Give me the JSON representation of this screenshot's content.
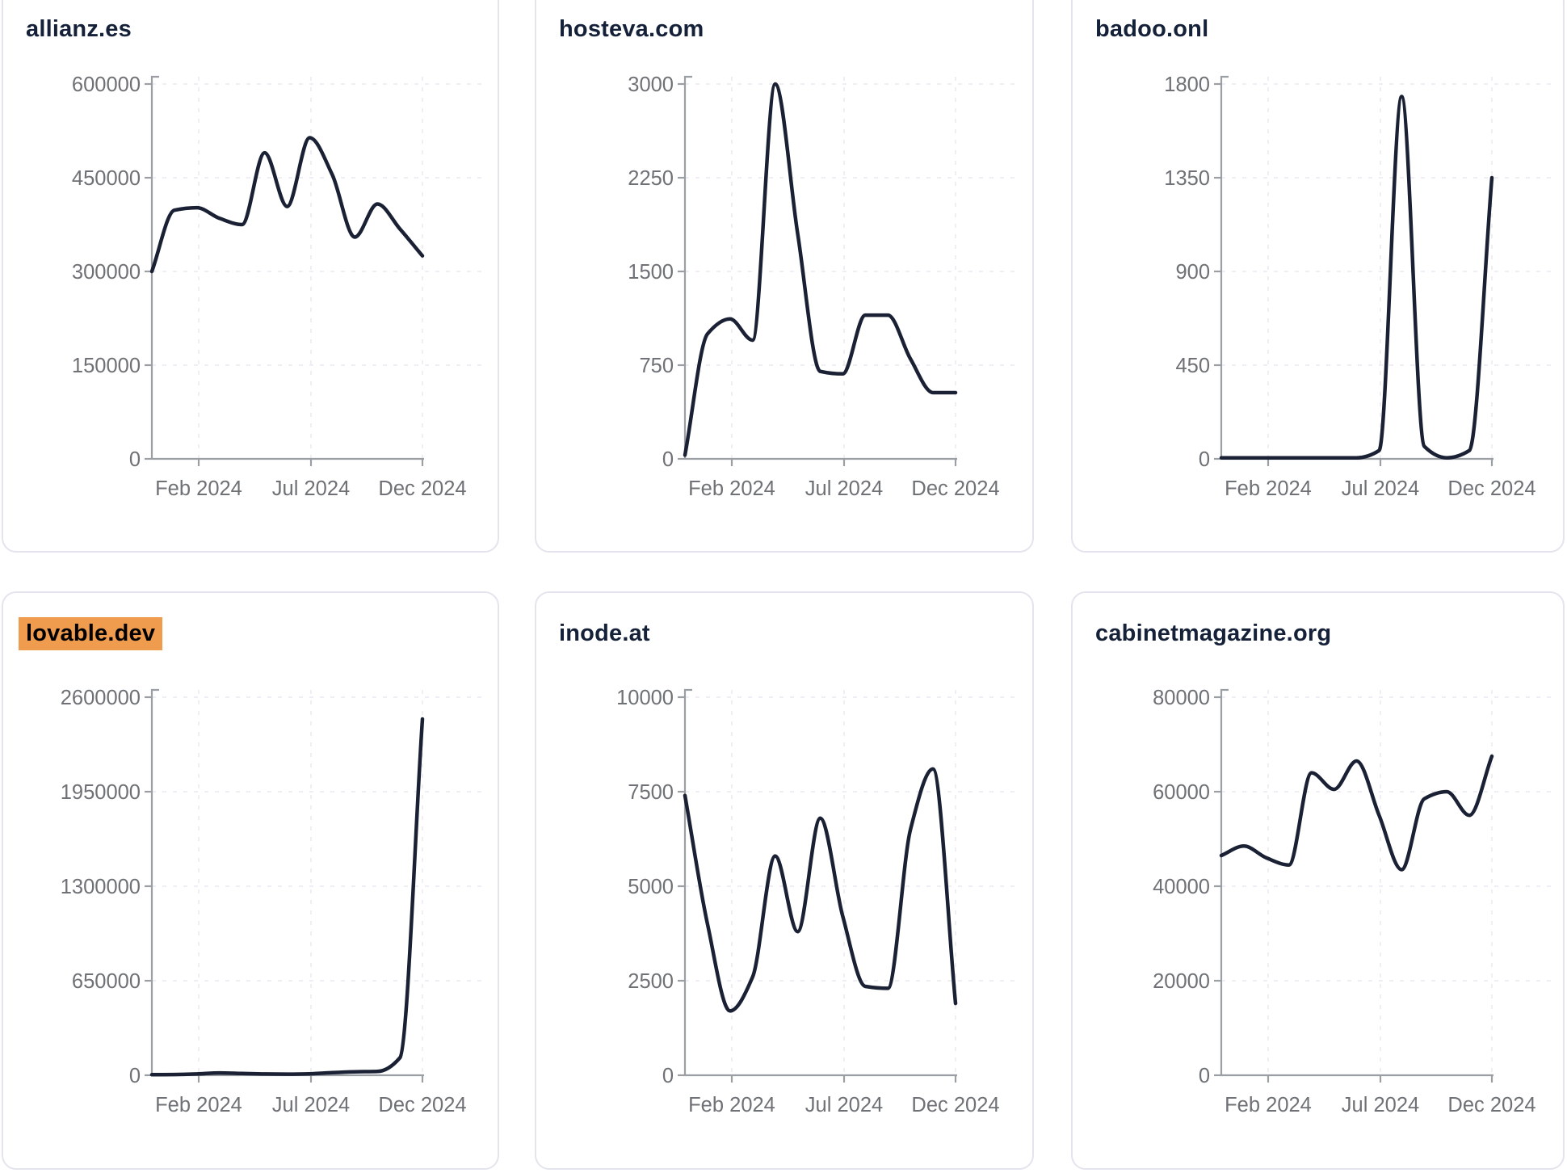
{
  "page": {
    "background": "#ffffff"
  },
  "style": {
    "line_color": "#1b2134",
    "title_color": "#152138",
    "axis_label_color": "#6e7175",
    "axis_line_color": "#9b9fa4",
    "grid_color": "#ececf2",
    "card_border_color": "#e4e4ee",
    "card_background": "#ffffff",
    "highlight_background": "#f09c4e",
    "highlight_text_color": "#000000"
  },
  "chart_data": [
    {
      "type": "line",
      "title": "allianz.es",
      "title_highlighted": false,
      "grid": true,
      "legend": "none",
      "x_tick_labels": [
        "Feb 2024",
        "Jul 2024",
        "Dec 2024"
      ],
      "x_tick_indices": [
        2,
        7,
        12
      ],
      "y_ticks": [
        0,
        150000,
        300000,
        450000,
        600000
      ],
      "ylim": [
        0,
        600000
      ],
      "values": [
        300000,
        398000,
        402000,
        385000,
        375000,
        490000,
        404000,
        514000,
        455000,
        355000,
        408000,
        368000,
        325000
      ]
    },
    {
      "type": "line",
      "title": "hosteva.com",
      "title_highlighted": false,
      "grid": true,
      "legend": "none",
      "x_tick_labels": [
        "Feb 2024",
        "Jul 2024",
        "Dec 2024"
      ],
      "x_tick_indices": [
        2,
        7,
        12
      ],
      "y_ticks": [
        0,
        750,
        1500,
        2250,
        3000
      ],
      "ylim": [
        0,
        3000
      ],
      "values": [
        30,
        1000,
        1120,
        950,
        3000,
        1800,
        700,
        680,
        1150,
        1150,
        800,
        530,
        530
      ]
    },
    {
      "type": "line",
      "title": "badoo.onl",
      "title_highlighted": false,
      "grid": true,
      "legend": "none",
      "x_tick_labels": [
        "Feb 2024",
        "Jul 2024",
        "Dec 2024"
      ],
      "x_tick_indices": [
        2,
        7,
        12
      ],
      "y_ticks": [
        0,
        450,
        900,
        1350,
        1800
      ],
      "ylim": [
        0,
        1800
      ],
      "values": [
        5,
        5,
        5,
        5,
        5,
        5,
        5,
        40,
        1740,
        60,
        5,
        40,
        1350
      ]
    },
    {
      "type": "line",
      "title": "lovable.dev",
      "title_highlighted": true,
      "grid": true,
      "legend": "none",
      "x_tick_labels": [
        "Feb 2024",
        "Jul 2024",
        "Dec 2024"
      ],
      "x_tick_indices": [
        2,
        7,
        12
      ],
      "y_ticks": [
        0,
        650000,
        1300000,
        1950000,
        2600000
      ],
      "ylim": [
        0,
        2600000
      ],
      "values": [
        4000,
        5000,
        9000,
        16000,
        12000,
        9000,
        8000,
        10000,
        18000,
        24000,
        26000,
        120000,
        2450000
      ]
    },
    {
      "type": "line",
      "title": "inode.at",
      "title_highlighted": false,
      "grid": true,
      "legend": "none",
      "x_tick_labels": [
        "Feb 2024",
        "Jul 2024",
        "Dec 2024"
      ],
      "x_tick_indices": [
        2,
        7,
        12
      ],
      "y_ticks": [
        0,
        2500,
        5000,
        7500,
        10000
      ],
      "ylim": [
        0,
        10000
      ],
      "values": [
        7400,
        4000,
        1700,
        2600,
        5800,
        3800,
        6800,
        4200,
        2350,
        2300,
        6500,
        8100,
        1900
      ]
    },
    {
      "type": "line",
      "title": "cabinetmagazine.org",
      "title_highlighted": false,
      "grid": true,
      "legend": "none",
      "x_tick_labels": [
        "Feb 2024",
        "Jul 2024",
        "Dec 2024"
      ],
      "x_tick_indices": [
        2,
        7,
        12
      ],
      "y_ticks": [
        0,
        20000,
        40000,
        60000,
        80000
      ],
      "ylim": [
        0,
        80000
      ],
      "values": [
        46500,
        48500,
        46000,
        44500,
        64000,
        60500,
        66500,
        55000,
        43500,
        58500,
        60000,
        55000,
        67500
      ]
    }
  ]
}
